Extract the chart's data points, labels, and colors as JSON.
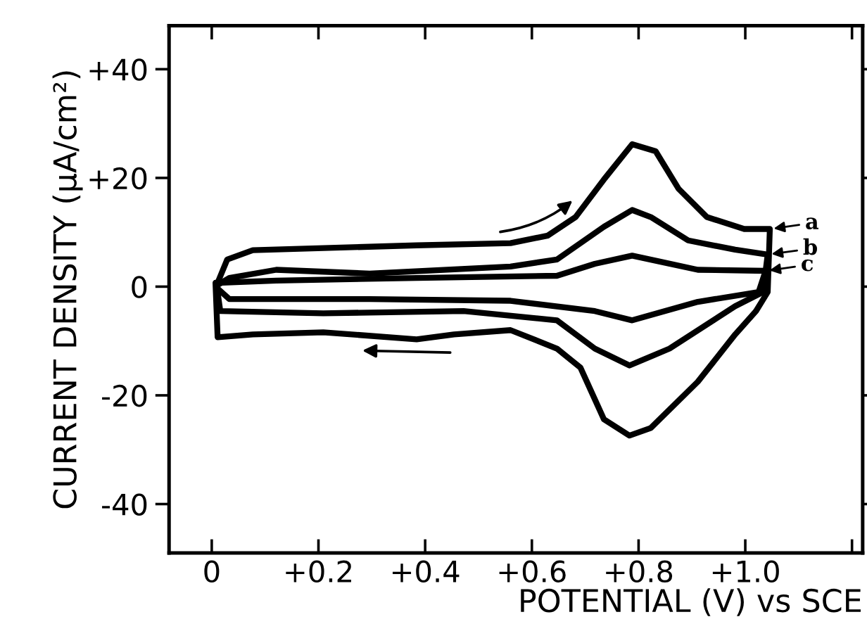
{
  "chart_data": {
    "type": "line",
    "xlabel": "POTENTIAL (V) vs SCE",
    "ylabel": "CURRENT DENSITY (μA/cm²)",
    "xlim": [
      -0.08,
      1.22
    ],
    "ylim": [
      -49,
      48
    ],
    "xticks": [
      {
        "value": 0,
        "label": "0"
      },
      {
        "value": 0.2,
        "label": "+0.2"
      },
      {
        "value": 0.4,
        "label": "+0.4"
      },
      {
        "value": 0.6,
        "label": "+0.6"
      },
      {
        "value": 0.8,
        "label": "+0.8"
      },
      {
        "value": 1.0,
        "label": "+1.0"
      },
      {
        "value": 1.2,
        "label": null
      }
    ],
    "yticks": [
      {
        "value": -40,
        "label": "-40"
      },
      {
        "value": -20,
        "label": "-20"
      },
      {
        "value": 0,
        "label": "0"
      },
      {
        "value": 20,
        "label": "+20"
      },
      {
        "value": 40,
        "label": "+40"
      }
    ],
    "grid": false,
    "legend": "right",
    "marker": "none",
    "line_style": "solid",
    "series": [
      {
        "name": "a",
        "color": "#000000",
        "x": [
          0.011,
          0.029,
          0.077,
          0.384,
          0.56,
          0.63,
          0.682,
          0.735,
          0.788,
          0.832,
          0.875,
          0.928,
          0.998,
          1.046,
          1.042,
          1.02,
          0.981,
          0.911,
          0.823,
          0.783,
          0.735,
          0.691,
          0.647,
          0.56,
          0.454,
          0.384,
          0.209,
          0.077,
          0.011,
          0.007
        ],
        "values": [
          0.7,
          5,
          6.7,
          7.6,
          8.0,
          9.4,
          12.8,
          19.7,
          26.2,
          24.9,
          18,
          12.8,
          10.6,
          10.6,
          -1,
          -4.5,
          -8.8,
          -17.5,
          -26,
          -27.4,
          -24.4,
          -14.9,
          -11.4,
          -8,
          -8.8,
          -9.7,
          -8.4,
          -8.8,
          -9.3,
          0.7
        ]
      },
      {
        "name": "b",
        "color": "#000000",
        "x": [
          0.011,
          0.033,
          0.121,
          0.296,
          0.56,
          0.647,
          0.735,
          0.788,
          0.823,
          0.893,
          0.981,
          1.042,
          1.033,
          0.981,
          0.858,
          0.783,
          0.718,
          0.647,
          0.472,
          0.209,
          0.016,
          0.009
        ],
        "values": [
          0.3,
          1.6,
          3.1,
          2.4,
          3.7,
          5,
          11,
          14.1,
          12.8,
          8.5,
          6.8,
          5.9,
          -1,
          -3.6,
          -11.4,
          -14.5,
          -11.4,
          -6.2,
          -4.5,
          -4.9,
          -4.5,
          0.3
        ]
      },
      {
        "name": "c",
        "color": "#000000",
        "x": [
          0.011,
          0.121,
          0.384,
          0.647,
          0.718,
          0.788,
          0.84,
          0.911,
          1.038,
          1.025,
          0.911,
          0.788,
          0.718,
          0.56,
          0.296,
          0.033,
          0.009
        ],
        "values": [
          0.7,
          1.1,
          1.6,
          2.0,
          4.2,
          5.7,
          4.6,
          3.1,
          2.9,
          -1,
          -2.8,
          -6.2,
          -4.5,
          -2.6,
          -2.3,
          -2.3,
          -0.2
        ]
      }
    ]
  }
}
